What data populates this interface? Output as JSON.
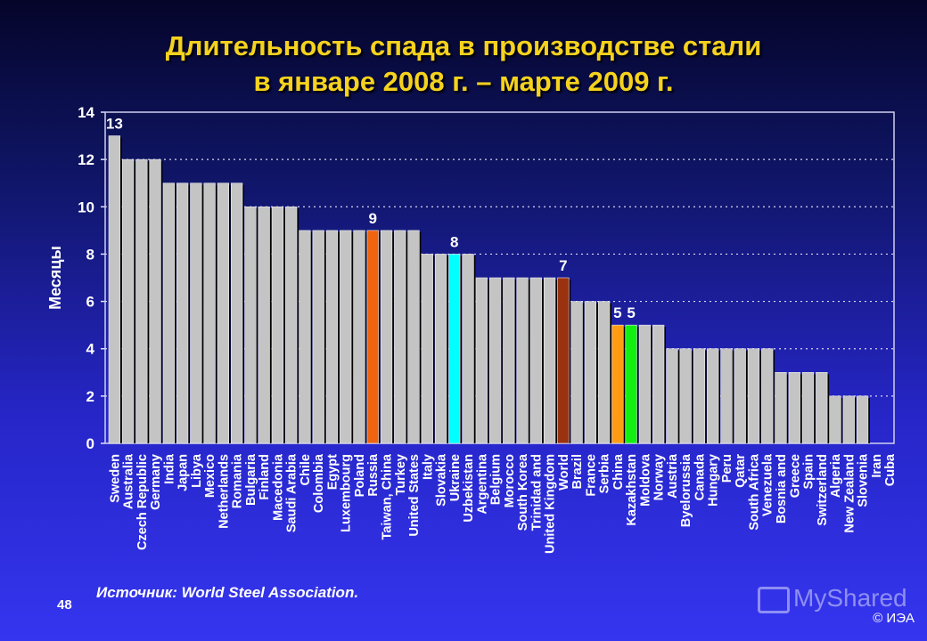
{
  "title": {
    "line1": "Длительность спада в производстве стали",
    "line2": "в январе 2008 г. – марте 2009 г."
  },
  "source": "Источник: World Steel Association.",
  "page_number": "48",
  "copyright": "© ИЭА",
  "watermark": "MyShared",
  "chart_data": {
    "type": "bar",
    "title": "Длительность спада в производстве стали в январе 2008 г. – марте 2009 г.",
    "xlabel": "",
    "ylabel": "Месяцы",
    "ylim": [
      0,
      14
    ],
    "yticks": [
      0,
      2,
      4,
      6,
      8,
      10,
      12,
      14
    ],
    "grid": "horizontal dotted",
    "categories": [
      "Sweden",
      "Australia",
      "Czech Republic",
      "Germany",
      "India",
      "Japan",
      "Libya",
      "Mexico",
      "Netherlands",
      "Romania",
      "Bulgaria",
      "Finland",
      "Macedonia",
      "Saudi Arabia",
      "Chile",
      "Colombia",
      "Egypt",
      "Luxembourg",
      "Poland",
      "Russia",
      "Taiwan, China",
      "Turkey",
      "United States",
      "Italy",
      "Slovakia",
      "Ukraine",
      "Uzbekistan",
      "Argentina",
      "Belgium",
      "Morocco",
      "South Korea",
      "Trinidad and",
      "United Kingdom",
      "World",
      "Brazil",
      "France",
      "Serbia",
      "China",
      "Kazakhstan",
      "Moldova",
      "Norway",
      "Austria",
      "Byelorussia",
      "Canada",
      "Hungary",
      "Peru",
      "Qatar",
      "South Africa",
      "Venezuela",
      "Bosnia and",
      "Greece",
      "Spain",
      "Switzerland",
      "Algeria",
      "New Zealand",
      "Slovenia",
      "Iran",
      "Cuba"
    ],
    "values": [
      13,
      12,
      12,
      12,
      11,
      11,
      11,
      11,
      11,
      11,
      10,
      10,
      10,
      10,
      9,
      9,
      9,
      9,
      9,
      9,
      9,
      9,
      9,
      8,
      8,
      8,
      8,
      7,
      7,
      7,
      7,
      7,
      7,
      7,
      6,
      6,
      6,
      5,
      5,
      5,
      5,
      4,
      4,
      4,
      4,
      4,
      4,
      4,
      4,
      3,
      3,
      3,
      3,
      2,
      2,
      2,
      0,
      0
    ],
    "default_color": "#c4c4c4",
    "highlights": {
      "Russia": "#f0640f",
      "Ukraine": "#00ffff",
      "World": "#9a3210",
      "China": "#ff9c12",
      "Kazakhstan": "#12f012"
    },
    "data_labels": {
      "Sweden": "13",
      "Russia": "9",
      "Ukraine": "8",
      "World": "7",
      "China": "5",
      "Kazakhstan": "5"
    }
  }
}
